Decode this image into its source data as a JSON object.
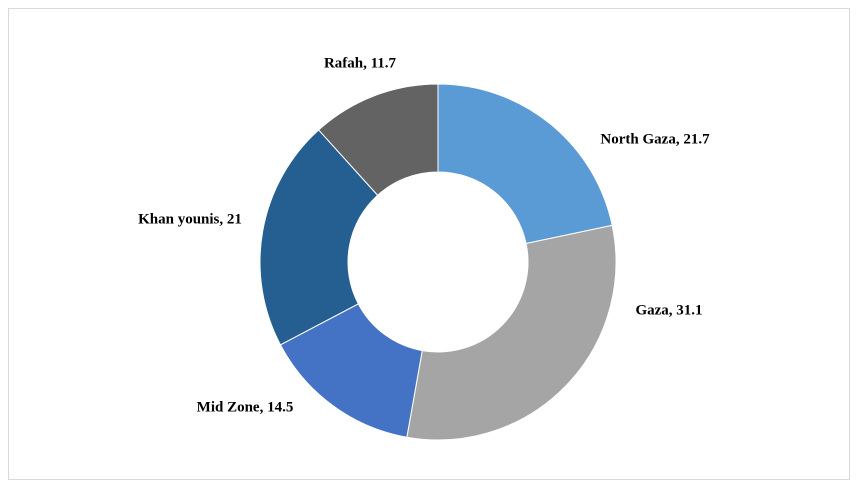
{
  "chart_data": {
    "type": "donut",
    "values": [
      21.7,
      31.1,
      14.5,
      21,
      11.7
    ],
    "value_labels": [
      "North Gaza, 21.7",
      "Gaza, 31.1",
      "Mid Zone, 14.5",
      "Khan younis, 21",
      "Rafah, 11.7"
    ],
    "colors": [
      "#5b9bd5",
      "#a5a5a5",
      "#4472c4",
      "#255e91",
      "#636363"
    ]
  }
}
